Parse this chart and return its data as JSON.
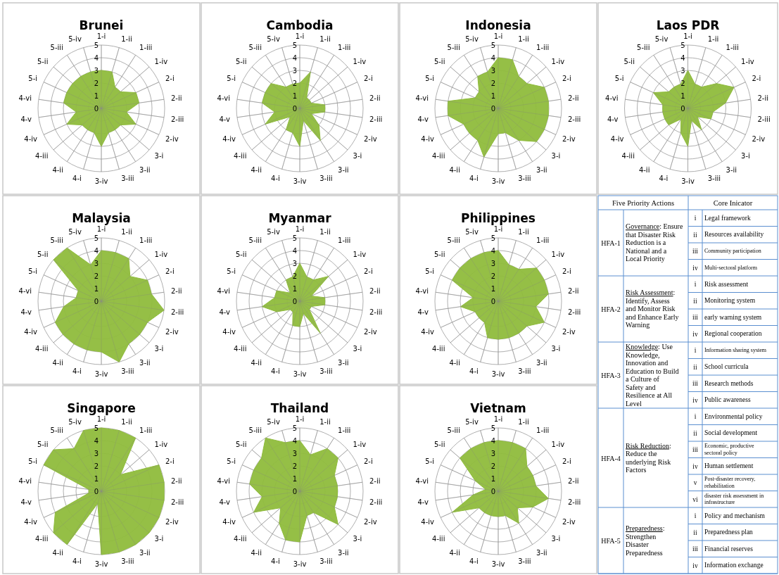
{
  "chart_data": [
    {
      "type": "radar",
      "title": "Brunei",
      "categories": [
        "1-i",
        "1-ii",
        "1-iii",
        "1-iv",
        "2-i",
        "2-ii",
        "2-iii",
        "2-iv",
        "3-i",
        "3-ii",
        "3-iii",
        "3-iv",
        "4-i",
        "4-ii",
        "4-iii",
        "4-iv",
        "4-v",
        "4-vi",
        "5-i",
        "5-ii",
        "5-iii",
        "5-iv"
      ],
      "ylim": [
        0,
        5
      ],
      "yticks": [
        0,
        1,
        2,
        3,
        4,
        5
      ],
      "grid": true,
      "series": [
        {
          "color": "#8fbc3c",
          "values": [
            3,
            3,
            2,
            2,
            3,
            3,
            2,
            3,
            2,
            2,
            2,
            3,
            2,
            2,
            2,
            3,
            2,
            3,
            3,
            3,
            3,
            3
          ]
        }
      ]
    },
    {
      "type": "radar",
      "title": "Cambodia",
      "categories": [
        "1-i",
        "1-ii",
        "1-iii",
        "1-iv",
        "2-i",
        "2-ii",
        "2-iii",
        "2-iv",
        "3-i",
        "3-ii",
        "3-iii",
        "3-iv",
        "4-i",
        "4-ii",
        "4-iii",
        "4-iv",
        "4-v",
        "4-vi",
        "5-i",
        "5-ii",
        "5-iii",
        "5-iv"
      ],
      "ylim": [
        0,
        5
      ],
      "yticks": [
        0,
        1,
        2,
        3,
        4,
        5
      ],
      "grid": true,
      "series": [
        {
          "color": "#8fbc3c",
          "values": [
            2,
            3,
            1,
            1,
            1,
            2,
            2,
            1,
            2,
            3,
            1,
            3,
            2,
            2,
            1,
            3,
            2,
            3,
            3,
            3,
            2,
            2
          ]
        }
      ]
    },
    {
      "type": "radar",
      "title": "Indonesia",
      "categories": [
        "1-i",
        "1-ii",
        "1-iii",
        "1-iv",
        "2-i",
        "2-ii",
        "2-iii",
        "2-iv",
        "3-i",
        "3-ii",
        "3-iii",
        "3-iv",
        "4-i",
        "4-ii",
        "4-iii",
        "4-iv",
        "4-v",
        "4-vi",
        "5-i",
        "5-ii",
        "5-iii",
        "5-iv"
      ],
      "ylim": [
        0,
        5
      ],
      "yticks": [
        0,
        1,
        2,
        3,
        4,
        5
      ],
      "grid": true,
      "series": [
        {
          "color": "#8fbc3c",
          "values": [
            4,
            4,
            3,
            3,
            4,
            4,
            4,
            4,
            4,
            3,
            2,
            2,
            4,
            3,
            3,
            3,
            4,
            4,
            2,
            2,
            3,
            3
          ]
        }
      ]
    },
    {
      "type": "radar",
      "title": "Laos PDR",
      "categories": [
        "1-i",
        "1-ii",
        "1-iii",
        "1-iv",
        "2-i",
        "2-ii",
        "2-iii",
        "2-iv",
        "3-i",
        "3-ii",
        "3-iii",
        "3-iv",
        "4-i",
        "4-ii",
        "4-iii",
        "4-iv",
        "4-v",
        "4-vi",
        "5-i",
        "5-ii",
        "5-iii",
        "5-iv"
      ],
      "ylim": [
        0,
        5
      ],
      "yticks": [
        0,
        1,
        2,
        3,
        4,
        5
      ],
      "grid": true,
      "series": [
        {
          "color": "#8fbc3c",
          "values": [
            3,
            2,
            2,
            3,
            4,
            3,
            2,
            2,
            1,
            2,
            1,
            3,
            2,
            1,
            2,
            2,
            2,
            2,
            3,
            2,
            2,
            2
          ]
        }
      ]
    },
    {
      "type": "radar",
      "title": "Malaysia",
      "categories": [
        "1-i",
        "1-ii",
        "1-iii",
        "1-iv",
        "2-i",
        "2-ii",
        "2-iii",
        "2-iv",
        "3-i",
        "3-ii",
        "3-iii",
        "3-iv",
        "4-i",
        "4-ii",
        "4-iii",
        "4-iv",
        "4-v",
        "4-vi",
        "5-i",
        "5-ii",
        "5-iii",
        "5-iv"
      ],
      "ylim": [
        0,
        5
      ],
      "yticks": [
        0,
        1,
        2,
        3,
        4,
        5
      ],
      "grid": true,
      "series": [
        {
          "color": "#8fbc3c",
          "values": [
            4,
            4,
            4,
            3,
            4,
            4,
            5,
            4,
            4,
            4,
            5,
            4,
            4,
            4,
            4,
            4,
            3,
            2,
            2,
            5,
            5,
            3
          ]
        }
      ]
    },
    {
      "type": "radar",
      "title": "Myanmar",
      "categories": [
        "1-i",
        "1-ii",
        "1-iii",
        "1-iv",
        "2-i",
        "2-ii",
        "2-iii",
        "2-iv",
        "3-i",
        "3-ii",
        "3-iii",
        "3-iv",
        "4-i",
        "4-ii",
        "4-iii",
        "4-iv",
        "4-v",
        "4-vi",
        "5-i",
        "5-ii",
        "5-iii",
        "5-iv"
      ],
      "ylim": [
        0,
        5
      ],
      "yticks": [
        0,
        1,
        2,
        3,
        4,
        5
      ],
      "grid": true,
      "series": [
        {
          "color": "#8fbc3c",
          "values": [
            3,
            2,
            2,
            3,
            1,
            2,
            2,
            1,
            1,
            3,
            1,
            2,
            2,
            1,
            1,
            2,
            3,
            2,
            2,
            1,
            2,
            2
          ]
        }
      ]
    },
    {
      "type": "radar",
      "title": "Philippines",
      "categories": [
        "1-i",
        "1-ii",
        "1-iii",
        "1-iv",
        "2-i",
        "2-ii",
        "2-iii",
        "2-iv",
        "3-i",
        "3-ii",
        "3-iii",
        "3-iv",
        "4-i",
        "4-ii",
        "4-iii",
        "4-iv",
        "4-v",
        "4-vi",
        "5-i",
        "5-ii",
        "5-iii",
        "5-iv"
      ],
      "ylim": [
        0,
        5
      ],
      "yticks": [
        0,
        1,
        2,
        3,
        4,
        5
      ],
      "grid": true,
      "series": [
        {
          "color": "#8fbc3c",
          "values": [
            4,
            3,
            3,
            4,
            4,
            4,
            3,
            4,
            3,
            3,
            3,
            3,
            3,
            2,
            2,
            2,
            3,
            2,
            4,
            4,
            4,
            4
          ]
        }
      ]
    },
    {
      "type": "radar",
      "title": "Singapore",
      "categories": [
        "1-i",
        "1-ii",
        "1-iii",
        "1-iv",
        "2-i",
        "2-ii",
        "2-iii",
        "2-iv",
        "3-i",
        "3-ii",
        "3-iii",
        "3-iv",
        "4-i",
        "4-ii",
        "4-iii",
        "4-iv",
        "4-v",
        "4-vi",
        "5-i",
        "5-ii",
        "5-iii",
        "5-iv"
      ],
      "ylim": [
        0,
        5
      ],
      "yticks": [
        0,
        1,
        2,
        3,
        4,
        5
      ],
      "grid": true,
      "series": [
        {
          "color": "#8fbc3c",
          "values": [
            5,
            5,
            5,
            2,
            5,
            5,
            5,
            5,
            5,
            5,
            5,
            5,
            1,
            5,
            5,
            4,
            1,
            1,
            5,
            5,
            4,
            5
          ]
        }
      ]
    },
    {
      "type": "radar",
      "title": "Thailand",
      "categories": [
        "1-i",
        "1-ii",
        "1-iii",
        "1-iv",
        "2-i",
        "2-ii",
        "2-iii",
        "2-iv",
        "3-i",
        "3-ii",
        "3-iii",
        "3-iv",
        "4-i",
        "4-ii",
        "4-iii",
        "4-iv",
        "4-v",
        "4-vi",
        "5-i",
        "5-ii",
        "5-iii",
        "5-iv"
      ],
      "ylim": [
        0,
        5
      ],
      "yticks": [
        0,
        1,
        2,
        3,
        4,
        5
      ],
      "grid": true,
      "series": [
        {
          "color": "#8fbc3c",
          "values": [
            4,
            3,
            4,
            4,
            3,
            3,
            3,
            3,
            4,
            2,
            2,
            4,
            4,
            3,
            2,
            4,
            3,
            4,
            4,
            4,
            5,
            4
          ]
        }
      ]
    },
    {
      "type": "radar",
      "title": "Vietnam",
      "categories": [
        "1-i",
        "1-ii",
        "1-iii",
        "1-iv",
        "2-i",
        "2-ii",
        "2-iii",
        "2-iv",
        "3-i",
        "3-ii",
        "3-iii",
        "3-iv",
        "4-i",
        "4-ii",
        "4-iii",
        "4-iv",
        "4-v",
        "4-vi",
        "5-i",
        "5-ii",
        "5-iii",
        "5-iv"
      ],
      "ylim": [
        0,
        5
      ],
      "yticks": [
        0,
        1,
        2,
        3,
        4,
        5
      ],
      "grid": true,
      "series": [
        {
          "color": "#8fbc3c",
          "values": [
            4,
            4,
            4,
            3,
            3,
            3,
            4,
            3,
            2,
            3,
            2,
            2,
            2,
            2,
            2,
            4,
            2,
            1,
            2,
            4,
            4,
            4
          ]
        }
      ]
    },
    {
      "type": "other",
      "annotations": [
        "Five Priority Actions",
        "Core Inicator"
      ],
      "categories": [
        "HFA-1",
        "HFA-2",
        "HFA-3",
        "HFA-4",
        "HFA-5"
      ],
      "y_categories": [
        "Governance: Ensure that Disaster Risk Reduction is a National and a Local Priority",
        "Risk Assessment: Identify, Assess and Monitor Risk and Enhance Early Warning",
        "Knowledge: Use Knowledge, Innovation and Education to Build a Culture of Safety and Resilience at All Level",
        "Risk Reduction: Reduce the underlying Risk Factors",
        "Preparedness: Strengthen Disaster Preparedness"
      ],
      "cell_labels": [
        [
          [
            "i",
            "Legal framework"
          ],
          [
            "ii",
            "Resources availability"
          ],
          [
            "iii",
            "Community participation"
          ],
          [
            "iv",
            "Multi-sectoral platform"
          ]
        ],
        [
          [
            "i",
            "Risk assessment"
          ],
          [
            "ii",
            "Monitoring system"
          ],
          [
            "iii",
            "early warning system"
          ],
          [
            "iv",
            "Regional cooperation"
          ]
        ],
        [
          [
            "i",
            "Information sharing system"
          ],
          [
            "ii",
            "School curricula"
          ],
          [
            "iii",
            "Research methods"
          ],
          [
            "iv",
            "Public awareness"
          ]
        ],
        [
          [
            "i",
            "Environmental policy"
          ],
          [
            "ii",
            "Social development"
          ],
          [
            "iii",
            "Economic, productive sectoral policy"
          ],
          [
            "iv",
            "Human settlement"
          ],
          [
            "v",
            "Post-disaster recovery, rehabilitation"
          ],
          [
            "vi",
            "disaster risk assessment in infrastructure"
          ]
        ],
        [
          [
            "i",
            "Policy and mechanism"
          ],
          [
            "ii",
            "Preparedness plan"
          ],
          [
            "iii",
            "Financial reserves"
          ],
          [
            "iv",
            "Information exchange"
          ]
        ]
      ]
    }
  ]
}
